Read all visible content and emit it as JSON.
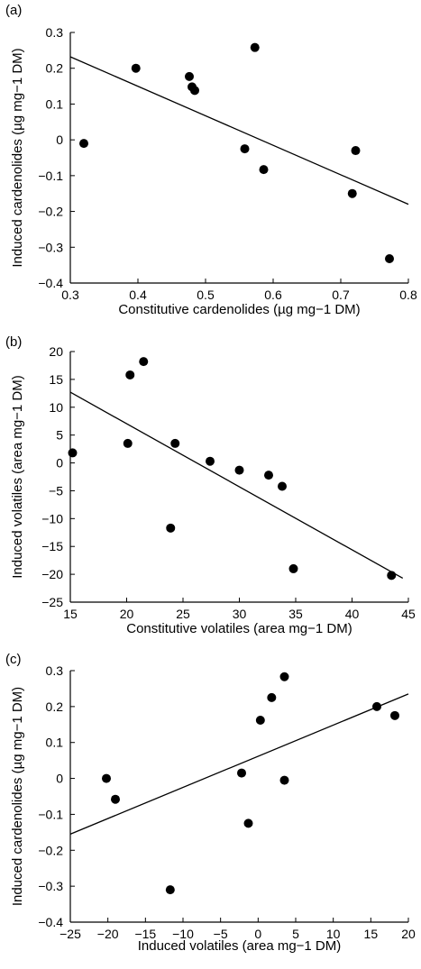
{
  "chart_data": [
    {
      "type": "scatter",
      "panel_label": "(a)",
      "xlabel": "Constitutive cardenolides (µg mg−1 DM)",
      "ylabel": "Induced cardenolides (µg mg−1 DM)",
      "xlim": [
        0.3,
        0.8
      ],
      "ylim": [
        -0.4,
        0.3
      ],
      "xticks": [
        0.3,
        0.4,
        0.5,
        0.6,
        0.7,
        0.8
      ],
      "yticks": [
        -0.4,
        -0.3,
        -0.2,
        -0.1,
        0,
        0.1,
        0.2,
        0.3
      ],
      "xtick_labels": [
        "0.3",
        "0.4",
        "0.5",
        "0.6",
        "0.7",
        "0.8"
      ],
      "ytick_labels": [
        "−0.4",
        "−0.3",
        "−0.2",
        "−0.1",
        "0",
        "0.1",
        "0.2",
        "0.3"
      ],
      "points": [
        [
          0.32,
          -0.01
        ],
        [
          0.397,
          0.2
        ],
        [
          0.476,
          0.177
        ],
        [
          0.48,
          0.148
        ],
        [
          0.484,
          0.138
        ],
        [
          0.558,
          -0.025
        ],
        [
          0.573,
          0.258
        ],
        [
          0.586,
          -0.083
        ],
        [
          0.717,
          -0.15
        ],
        [
          0.722,
          -0.03
        ],
        [
          0.772,
          -0.332
        ]
      ],
      "fit_line": [
        [
          0.3,
          0.232
        ],
        [
          0.8,
          -0.18
        ]
      ],
      "grid": false
    },
    {
      "type": "scatter",
      "panel_label": "(b)",
      "xlabel": "Constitutive volatiles (area mg−1 DM)",
      "ylabel": "Induced volatiles (area mg−1 DM)",
      "xlim": [
        15,
        45
      ],
      "ylim": [
        -25,
        20
      ],
      "xticks": [
        15,
        20,
        25,
        30,
        35,
        40,
        45
      ],
      "yticks": [
        -25,
        -20,
        -15,
        -10,
        -5,
        0,
        5,
        10,
        15,
        20
      ],
      "xtick_labels": [
        "15",
        "20",
        "25",
        "30",
        "35",
        "40",
        "45"
      ],
      "ytick_labels": [
        "−25",
        "−20",
        "−15",
        "−10",
        "−5",
        "0",
        "5",
        "10",
        "15",
        "20"
      ],
      "points": [
        [
          15.2,
          1.8
        ],
        [
          20.1,
          3.5
        ],
        [
          20.3,
          15.8
        ],
        [
          21.5,
          18.2
        ],
        [
          23.9,
          -11.7
        ],
        [
          24.3,
          3.5
        ],
        [
          27.4,
          0.3
        ],
        [
          30.0,
          -1.3
        ],
        [
          32.6,
          -2.2
        ],
        [
          33.8,
          -4.2
        ],
        [
          34.8,
          -19.0
        ],
        [
          43.5,
          -20.2
        ]
      ],
      "fit_line": [
        [
          15,
          12.7
        ],
        [
          44.5,
          -20.7
        ]
      ],
      "grid": false
    },
    {
      "type": "scatter",
      "panel_label": "(c)",
      "xlabel": "Induced volatiles (area mg−1 DM)",
      "ylabel": "Induced cardenolides (µg mg−1 DM)",
      "xlim": [
        -25,
        20
      ],
      "ylim": [
        -0.4,
        0.3
      ],
      "xticks": [
        -25,
        -20,
        -15,
        -10,
        -5,
        0,
        5,
        10,
        15,
        20
      ],
      "yticks": [
        -0.4,
        -0.3,
        -0.2,
        -0.1,
        0,
        0.1,
        0.2,
        0.3
      ],
      "xtick_labels": [
        "−25",
        "−20",
        "−15",
        "−10",
        "−5",
        "0",
        "5",
        "10",
        "15",
        "20"
      ],
      "ytick_labels": [
        "−0.4",
        "−0.3",
        "−0.2",
        "−0.1",
        "0",
        "0.1",
        "0.2",
        "0.3"
      ],
      "points": [
        [
          -20.2,
          0.0
        ],
        [
          -19.0,
          -0.058
        ],
        [
          -11.7,
          -0.31
        ],
        [
          -2.2,
          0.015
        ],
        [
          -1.3,
          -0.125
        ],
        [
          0.3,
          0.162
        ],
        [
          1.8,
          0.225
        ],
        [
          3.5,
          0.283
        ],
        [
          3.5,
          -0.005
        ],
        [
          15.8,
          0.2
        ],
        [
          18.2,
          0.175
        ]
      ],
      "fit_line": [
        [
          -25,
          -0.155
        ],
        [
          20,
          0.235
        ]
      ],
      "grid": false
    }
  ]
}
